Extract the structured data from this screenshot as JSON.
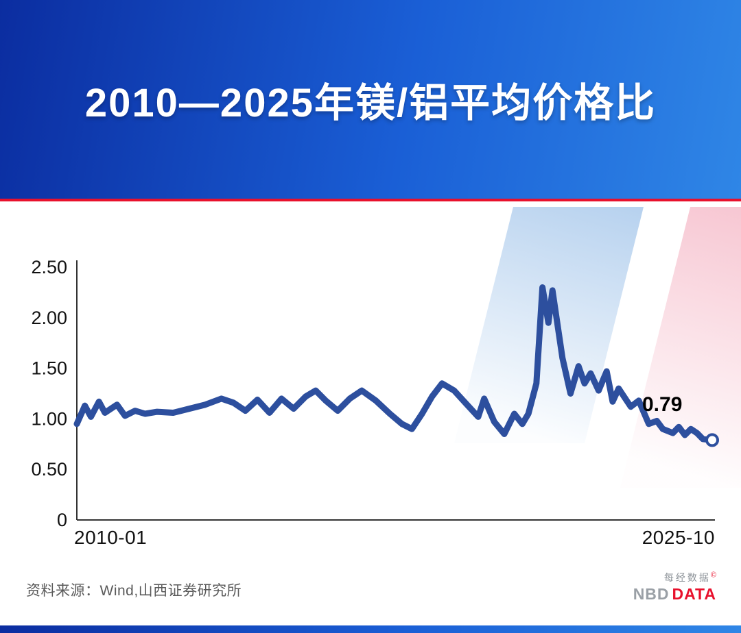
{
  "banner": {
    "title": "2010—2025年镁/铝平均价格比"
  },
  "chart_data": {
    "type": "line",
    "title": "2010—2025年镁/铝平均价格比",
    "x_start_label": "2010-01",
    "x_end_label": "2025-10",
    "ylim": [
      0,
      2.5
    ],
    "yticks": [
      0,
      0.5,
      1.0,
      1.5,
      2.0,
      2.5
    ],
    "ytick_labels": [
      "0",
      "0.50",
      "1.00",
      "1.50",
      "2.00",
      "2.50"
    ],
    "end_value_label": "0.79",
    "line_color": "#2d4f9e",
    "axis_color": "#333333",
    "grid": false,
    "legend": "none",
    "points": [
      [
        2010.0,
        0.95
      ],
      [
        2010.2,
        1.13
      ],
      [
        2010.35,
        1.02
      ],
      [
        2010.55,
        1.17
      ],
      [
        2010.7,
        1.06
      ],
      [
        2010.85,
        1.1
      ],
      [
        2011.0,
        1.14
      ],
      [
        2011.2,
        1.03
      ],
      [
        2011.45,
        1.08
      ],
      [
        2011.7,
        1.05
      ],
      [
        2012.0,
        1.07
      ],
      [
        2012.4,
        1.06
      ],
      [
        2012.8,
        1.1
      ],
      [
        2013.2,
        1.14
      ],
      [
        2013.6,
        1.2
      ],
      [
        2013.9,
        1.16
      ],
      [
        2014.2,
        1.08
      ],
      [
        2014.5,
        1.19
      ],
      [
        2014.8,
        1.06
      ],
      [
        2015.1,
        1.2
      ],
      [
        2015.4,
        1.1
      ],
      [
        2015.7,
        1.22
      ],
      [
        2015.95,
        1.28
      ],
      [
        2016.2,
        1.18
      ],
      [
        2016.5,
        1.08
      ],
      [
        2016.8,
        1.2
      ],
      [
        2017.1,
        1.28
      ],
      [
        2017.45,
        1.18
      ],
      [
        2017.8,
        1.05
      ],
      [
        2018.1,
        0.95
      ],
      [
        2018.35,
        0.9
      ],
      [
        2018.6,
        1.05
      ],
      [
        2018.85,
        1.22
      ],
      [
        2019.1,
        1.35
      ],
      [
        2019.4,
        1.28
      ],
      [
        2019.7,
        1.15
      ],
      [
        2020.0,
        1.02
      ],
      [
        2020.15,
        1.2
      ],
      [
        2020.4,
        0.97
      ],
      [
        2020.65,
        0.85
      ],
      [
        2020.9,
        1.05
      ],
      [
        2021.1,
        0.95
      ],
      [
        2021.25,
        1.05
      ],
      [
        2021.45,
        1.35
      ],
      [
        2021.6,
        2.3
      ],
      [
        2021.75,
        1.95
      ],
      [
        2021.85,
        2.27
      ],
      [
        2022.1,
        1.6
      ],
      [
        2022.3,
        1.25
      ],
      [
        2022.5,
        1.52
      ],
      [
        2022.65,
        1.35
      ],
      [
        2022.8,
        1.45
      ],
      [
        2023.0,
        1.28
      ],
      [
        2023.2,
        1.47
      ],
      [
        2023.35,
        1.17
      ],
      [
        2023.5,
        1.3
      ],
      [
        2023.8,
        1.12
      ],
      [
        2024.0,
        1.18
      ],
      [
        2024.25,
        0.95
      ],
      [
        2024.45,
        0.98
      ],
      [
        2024.6,
        0.9
      ],
      [
        2024.85,
        0.86
      ],
      [
        2025.0,
        0.92
      ],
      [
        2025.15,
        0.84
      ],
      [
        2025.3,
        0.9
      ],
      [
        2025.45,
        0.86
      ],
      [
        2025.6,
        0.8
      ],
      [
        2025.83,
        0.79
      ]
    ]
  },
  "footer": {
    "source": "资料来源：Wind,山西证券研究所",
    "brand_top": "每经数据",
    "brand_copyright": "©",
    "brand_nbd": "NBD",
    "brand_data": "DATA"
  }
}
